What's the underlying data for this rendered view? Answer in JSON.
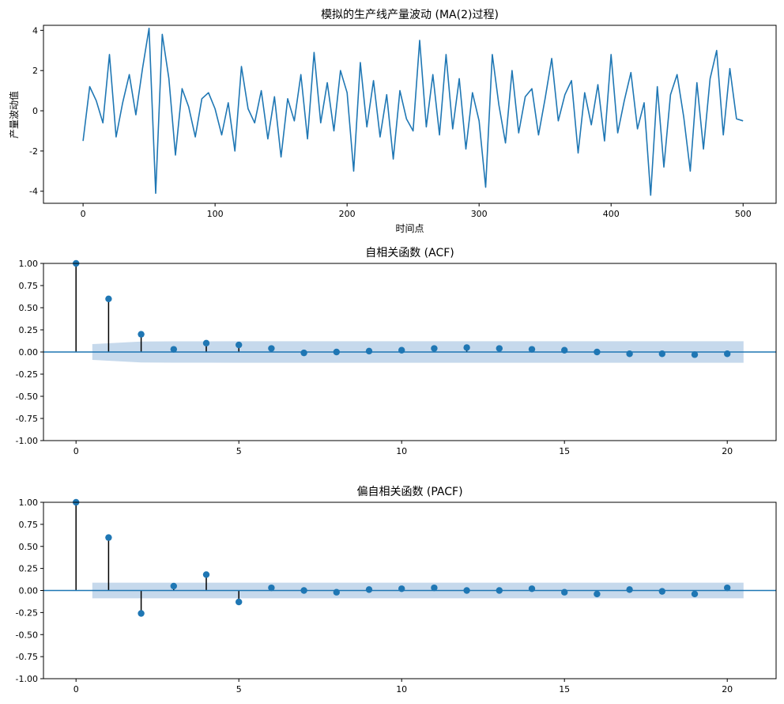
{
  "chart_data": [
    {
      "type": "line",
      "title": "模拟的生产线产量波动 (MA(2)过程)",
      "xlabel": "时间点",
      "ylabel": "产量波动值",
      "xlim": [
        -30,
        525
      ],
      "ylim": [
        -4.6,
        4.25
      ],
      "xticks": [
        0,
        100,
        200,
        300,
        400,
        500
      ],
      "yticks": [
        -4,
        -2,
        0,
        2,
        4
      ],
      "grid": false,
      "color": "#1f77b4",
      "series": [
        {
          "x_start": 0,
          "x_step": 5,
          "values": [
            -1.5,
            1.2,
            0.5,
            -0.6,
            2.8,
            -1.3,
            0.4,
            1.8,
            -0.2,
            2.1,
            4.1,
            -4.1,
            3.8,
            1.6,
            -2.2,
            1.1,
            0.2,
            -1.3,
            0.6,
            0.9,
            0.1,
            -1.2,
            0.4,
            -2.0,
            2.2,
            0.1,
            -0.6,
            1.0,
            -1.4,
            0.7,
            -2.3,
            0.6,
            -0.5,
            1.8,
            -1.4,
            2.9,
            -0.6,
            1.4,
            -1.0,
            2.0,
            0.9,
            -3.0,
            2.4,
            -0.8,
            1.5,
            -1.3,
            0.8,
            -2.4,
            1.0,
            -0.4,
            -1.0,
            3.5,
            -0.8,
            1.8,
            -1.2,
            2.8,
            -0.9,
            1.6,
            -1.9,
            0.9,
            -0.5,
            -3.8,
            2.8,
            0.3,
            -1.6,
            2.0,
            -1.1,
            0.7,
            1.1,
            -1.2,
            0.6,
            2.6,
            -0.5,
            0.8,
            1.5,
            -2.1,
            0.9,
            -0.7,
            1.3,
            -1.5,
            2.8,
            -1.1,
            0.5,
            1.9,
            -0.9,
            0.4,
            -4.2,
            1.2,
            -2.8,
            0.8,
            1.8,
            -0.3,
            -3.0,
            1.4,
            -1.9,
            1.6,
            3.0,
            -1.2,
            2.1,
            -0.4,
            -0.5
          ]
        }
      ]
    },
    {
      "type": "stem",
      "title": "自相关函数 (ACF)",
      "xlim": [
        -1,
        21.5
      ],
      "ylim": [
        -1.0,
        1.0
      ],
      "xticks": [
        0,
        5,
        10,
        15,
        20
      ],
      "yticks": [
        "-1.00",
        "-0.75",
        "-0.50",
        "-0.25",
        "0.00",
        "0.25",
        "0.50",
        "0.75",
        "1.00"
      ],
      "color": "#1f77b4",
      "confidence_color": "#c6d9ec",
      "lags": [
        0,
        1,
        2,
        3,
        4,
        5,
        6,
        7,
        8,
        9,
        10,
        11,
        12,
        13,
        14,
        15,
        16,
        17,
        18,
        19,
        20
      ],
      "values": [
        1.0,
        0.6,
        0.2,
        0.03,
        0.1,
        0.08,
        0.04,
        -0.01,
        0.0,
        0.01,
        0.02,
        0.04,
        0.05,
        0.04,
        0.03,
        0.02,
        0.0,
        -0.02,
        -0.02,
        -0.03,
        -0.02
      ],
      "confint": [
        0,
        0.089,
        0.118,
        0.121,
        0.121,
        0.122,
        0.122,
        0.122,
        0.122,
        0.122,
        0.122,
        0.122,
        0.122,
        0.122,
        0.122,
        0.122,
        0.122,
        0.122,
        0.122,
        0.122,
        0.122
      ]
    },
    {
      "type": "stem",
      "title": "偏自相关函数 (PACF)",
      "xlim": [
        -1,
        21.5
      ],
      "ylim": [
        -1.0,
        1.0
      ],
      "xticks": [
        0,
        5,
        10,
        15,
        20
      ],
      "yticks": [
        "-1.00",
        "-0.75",
        "-0.50",
        "-0.25",
        "0.00",
        "0.25",
        "0.50",
        "0.75",
        "1.00"
      ],
      "color": "#1f77b4",
      "confidence_color": "#c6d9ec",
      "lags": [
        0,
        1,
        2,
        3,
        4,
        5,
        6,
        7,
        8,
        9,
        10,
        11,
        12,
        13,
        14,
        15,
        16,
        17,
        18,
        19,
        20
      ],
      "values": [
        1.0,
        0.6,
        -0.26,
        0.05,
        0.18,
        -0.13,
        0.03,
        0.0,
        -0.02,
        0.01,
        0.02,
        0.03,
        0.0,
        0.0,
        0.02,
        -0.02,
        -0.04,
        0.01,
        -0.01,
        -0.04,
        0.03
      ],
      "confint": [
        0,
        0.089,
        0.089,
        0.089,
        0.089,
        0.089,
        0.089,
        0.089,
        0.089,
        0.089,
        0.089,
        0.089,
        0.089,
        0.089,
        0.089,
        0.089,
        0.089,
        0.089,
        0.089,
        0.089,
        0.089
      ]
    }
  ]
}
